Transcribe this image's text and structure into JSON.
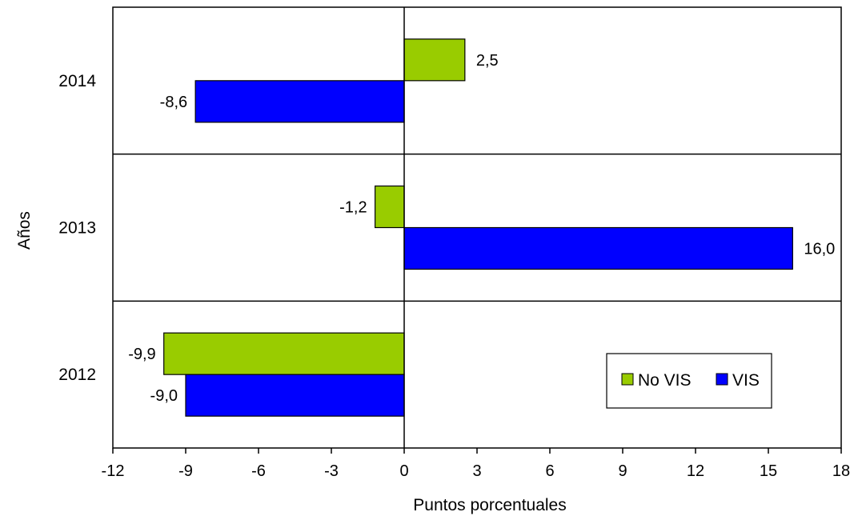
{
  "chart_data": {
    "type": "bar",
    "orientation": "horizontal",
    "title": "",
    "xlabel": "Puntos porcentuales",
    "ylabel": "Años",
    "xlim": [
      -12,
      18
    ],
    "xticks": [
      -12,
      -9,
      -6,
      -3,
      0,
      3,
      6,
      9,
      12,
      15,
      18
    ],
    "xtick_labels": [
      "-12",
      "-9",
      "-6",
      "-3",
      "0",
      "3",
      "6",
      "9",
      "12",
      "15",
      "18"
    ],
    "categories": [
      "2014",
      "2013",
      "2012"
    ],
    "series": [
      {
        "name": "No VIS",
        "color": "#99CC00",
        "values": [
          2.5,
          -1.2,
          -9.9
        ],
        "labels": [
          "2,5",
          "-1,2",
          "-9,9"
        ]
      },
      {
        "name": "VIS",
        "color": "#0000FF",
        "values": [
          -8.6,
          16.0,
          -9.0
        ],
        "labels": [
          "-8,6",
          "16,0",
          "-9,0"
        ]
      }
    ],
    "legend": {
      "position": "bottom-right inside plot",
      "entries": [
        "No VIS",
        "VIS"
      ]
    },
    "grid": {
      "vertical": false,
      "horizontal_category_separators": true
    }
  }
}
